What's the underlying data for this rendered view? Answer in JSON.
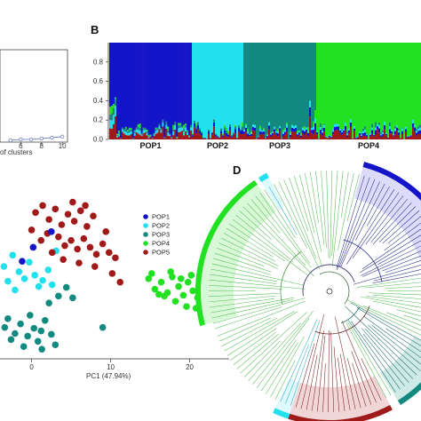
{
  "panels": {
    "A": {
      "letter": "",
      "xlabel_fragment": "of clusters",
      "x_ticks": [
        "6",
        "8",
        "10"
      ]
    },
    "B": {
      "letter": "B",
      "y_ticks": [
        "0.0",
        "0.2",
        "0.4",
        "0.6",
        "0.8"
      ],
      "pop_labels": [
        "POP1",
        "POP2",
        "POP3",
        "POP4"
      ]
    },
    "C": {
      "letter": "",
      "xlabel": "PC1 (47.94%)",
      "x_ticks": [
        "0",
        "10",
        "20"
      ]
    },
    "D": {
      "letter": "D"
    }
  },
  "colors": {
    "POP1": "#1414c8",
    "POP2": "#22e0ee",
    "POP3": "#138a80",
    "POP4": "#22e022",
    "POP5": "#a01a1a"
  },
  "chart_data": [
    {
      "panel": "A",
      "type": "line",
      "title": "",
      "xlabel": "of clusters",
      "ylabel": "",
      "x": [
        5,
        6,
        7,
        8,
        9,
        10
      ],
      "values": [
        0.02,
        0.03,
        0.03,
        0.04,
        0.05,
        0.06
      ],
      "xlim": [
        4,
        10.5
      ],
      "ylim": [
        0,
        1
      ],
      "grid": false
    },
    {
      "panel": "B",
      "type": "bar",
      "title": "",
      "xlabel": "",
      "ylabel": "",
      "ylim": [
        0,
        1
      ],
      "stacked": true,
      "categories": [
        "POP1",
        "POP2",
        "POP3",
        "POP4"
      ],
      "groups": [
        {
          "label": "POP1",
          "count": 16,
          "dominant": "POP1"
        },
        {
          "label": "POP2",
          "count": 10,
          "dominant": "POP2"
        },
        {
          "label": "POP3",
          "count": 14,
          "dominant": "POP3"
        },
        {
          "label": "POP4",
          "count": 20,
          "dominant": "POP4"
        }
      ]
    },
    {
      "panel": "C",
      "type": "scatter",
      "title": "",
      "xlabel": "PC1 (47.94%)",
      "ylabel": "",
      "xlim": [
        -4,
        25
      ],
      "legend": {
        "position": "top-right",
        "entries": [
          "POP1",
          "POP2",
          "POP3",
          "POP4",
          "POP5"
        ]
      },
      "series": [
        {
          "name": "POP1",
          "points": [
            [
              -1.2,
              10.8
            ],
            [
              2.5,
              14.2
            ],
            [
              0.2,
              12.4
            ]
          ]
        },
        {
          "name": "POP2",
          "points": [
            [
              -3.5,
              10.2
            ],
            [
              -2.4,
              11.5
            ],
            [
              -1.6,
              9.6
            ],
            [
              -0.9,
              8.8
            ],
            [
              0.4,
              9.2
            ],
            [
              1.4,
              8.6
            ],
            [
              2.1,
              9.8
            ],
            [
              -3.0,
              8.5
            ],
            [
              -2.1,
              7.5
            ],
            [
              -0.3,
              10.7
            ],
            [
              0.9,
              7.9
            ],
            [
              2.6,
              8.1
            ],
            [
              3.1,
              12.0
            ]
          ]
        },
        {
          "name": "POP3",
          "points": [
            [
              -3.0,
              4.2
            ],
            [
              -2.1,
              2.5
            ],
            [
              -1.4,
              3.6
            ],
            [
              -0.5,
              2.2
            ],
            [
              0.3,
              3.1
            ],
            [
              1.2,
              2.8
            ],
            [
              -2.6,
              1.8
            ],
            [
              -1.0,
              1.0
            ],
            [
              0.8,
              1.6
            ],
            [
              1.7,
              4.0
            ],
            [
              2.5,
              2.4
            ],
            [
              3.4,
              6.8
            ],
            [
              4.4,
              7.8
            ],
            [
              5.2,
              6.6
            ],
            [
              2.2,
              6.0
            ],
            [
              3.0,
              1.2
            ],
            [
              -0.2,
              4.6
            ],
            [
              9.0,
              3.2
            ],
            [
              -3.4,
              3.2
            ],
            [
              1.3,
              0.7
            ]
          ]
        },
        {
          "name": "POP4",
          "points": [
            [
              14.8,
              8.8
            ],
            [
              15.6,
              7.6
            ],
            [
              16.4,
              8.4
            ],
            [
              17.2,
              7.2
            ],
            [
              17.8,
              9.0
            ],
            [
              18.6,
              7.9
            ],
            [
              19.2,
              6.9
            ],
            [
              19.8,
              8.4
            ],
            [
              20.4,
              7.4
            ],
            [
              21.0,
              6.6
            ],
            [
              21.6,
              7.8
            ],
            [
              22.2,
              6.4
            ],
            [
              22.8,
              7.2
            ],
            [
              16.8,
              6.8
            ],
            [
              18.2,
              6.2
            ],
            [
              19.6,
              5.6
            ],
            [
              20.8,
              5.4
            ],
            [
              21.8,
              5.8
            ],
            [
              17.6,
              9.6
            ],
            [
              15.2,
              9.4
            ],
            [
              23.4,
              6.2
            ],
            [
              20.2,
              9.2
            ],
            [
              18.9,
              8.8
            ],
            [
              16.1,
              7.0
            ]
          ]
        },
        {
          "name": "POP5",
          "points": [
            [
              0.5,
              16.4
            ],
            [
              1.4,
              17.2
            ],
            [
              2.2,
              15.6
            ],
            [
              3.0,
              16.8
            ],
            [
              3.8,
              15.0
            ],
            [
              4.6,
              16.2
            ],
            [
              5.4,
              15.4
            ],
            [
              6.2,
              16.6
            ],
            [
              7.0,
              14.8
            ],
            [
              3.4,
              13.6
            ],
            [
              4.2,
              12.6
            ],
            [
              5.0,
              13.2
            ],
            [
              5.8,
              12.2
            ],
            [
              6.6,
              13.4
            ],
            [
              7.4,
              12.4
            ],
            [
              8.2,
              11.6
            ],
            [
              9.0,
              12.8
            ],
            [
              9.8,
              11.8
            ],
            [
              10.6,
              11.2
            ],
            [
              4.0,
              11.0
            ],
            [
              6.0,
              10.6
            ],
            [
              8.0,
              10.2
            ],
            [
              2.6,
              11.8
            ],
            [
              1.2,
              13.2
            ],
            [
              0.0,
              14.4
            ],
            [
              5.2,
              17.6
            ],
            [
              6.8,
              17.2
            ],
            [
              7.8,
              16.0
            ],
            [
              2.0,
              14.0
            ],
            [
              9.4,
              14.2
            ],
            [
              10.2,
              9.4
            ],
            [
              11.2,
              8.4
            ]
          ]
        }
      ]
    },
    {
      "panel": "D",
      "type": "tree",
      "title": "",
      "layout": "circular",
      "clades": [
        {
          "name": "POP1",
          "start_deg": -75,
          "end_deg": -10
        },
        {
          "name": "POP2",
          "start_deg": -122,
          "end_deg": -118
        },
        {
          "name": "POP4",
          "start_deg": -195,
          "end_deg": -124
        },
        {
          "name": "POP3",
          "start_deg": 28,
          "end_deg": 58
        },
        {
          "name": "POP5",
          "start_deg": 62,
          "end_deg": 108
        },
        {
          "name": "POP2",
          "start_deg": 108,
          "end_deg": 115
        }
      ]
    }
  ]
}
